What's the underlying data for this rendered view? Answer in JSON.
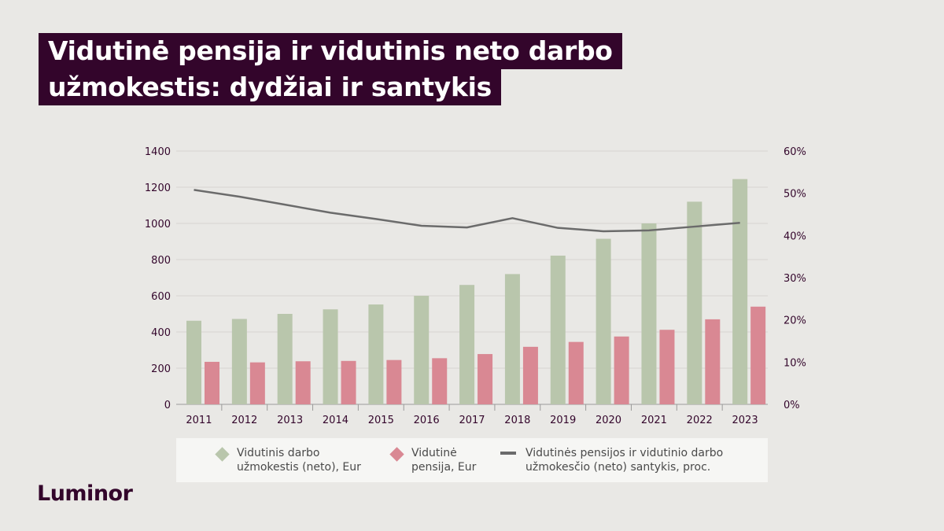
{
  "title": {
    "line1": "Vidutinė pensija ir vidutinis neto darbo",
    "line2": "užmokestis: dydžiai ir santykis"
  },
  "logo": "Luminor",
  "colors": {
    "background": "#e9e8e5",
    "title_bg": "#33052b",
    "wage": "#b9c6ac",
    "pension": "#d98893",
    "ratio": "#6b6b6b",
    "axis_text": "#33052b"
  },
  "legend": {
    "wage": "Vidutinis darbo užmokestis (neto), Eur",
    "wage_line1": "Vidutinis darbo",
    "wage_line2": "užmokestis (neto), Eur",
    "pension": "Vidutinė pensija, Eur",
    "pension_line1": "Vidutinė",
    "pension_line2": "pensija, Eur",
    "ratio": "Vidutinės pensijos ir vidutinio darbo užmokesčio (neto) santykis, proc.",
    "ratio_line1": "Vidutinės pensijos ir vidutinio darbo",
    "ratio_line2": "užmokesčio (neto) santykis, proc."
  },
  "chart_data": {
    "type": "bar",
    "categories": [
      "2011",
      "2012",
      "2013",
      "2014",
      "2015",
      "2016",
      "2017",
      "2018",
      "2019",
      "2020",
      "2021",
      "2022",
      "2023"
    ],
    "series": [
      {
        "name": "Vidutinis darbo užmokestis (neto), Eur",
        "type": "bar",
        "axis": "left",
        "values": [
          462,
          472,
          500,
          525,
          552,
          600,
          660,
          720,
          822,
          915,
          1000,
          1120,
          1245
        ]
      },
      {
        "name": "Vidutinė pensija, Eur",
        "type": "bar",
        "axis": "left",
        "values": [
          235,
          232,
          238,
          240,
          245,
          255,
          278,
          318,
          345,
          375,
          412,
          470,
          540
        ]
      },
      {
        "name": "Vidutinės pensijos ir vidutinio darbo užmokesčio (neto) santykis, proc.",
        "type": "line",
        "axis": "right",
        "values": [
          50.8,
          49.2,
          47.3,
          45.4,
          43.9,
          42.3,
          41.9,
          44.1,
          41.8,
          41.0,
          41.2,
          42.1,
          43.0
        ]
      }
    ],
    "ylim": [
      0,
      1400
    ],
    "y_ticks": [
      "0",
      "200",
      "400",
      "600",
      "800",
      "1000",
      "1200",
      "1400"
    ],
    "y2lim": [
      0,
      60
    ],
    "y2_ticks": [
      "0%",
      "10%",
      "20%",
      "30%",
      "40%",
      "50%",
      "60%"
    ],
    "grid": true,
    "legend_position": "bottom"
  }
}
